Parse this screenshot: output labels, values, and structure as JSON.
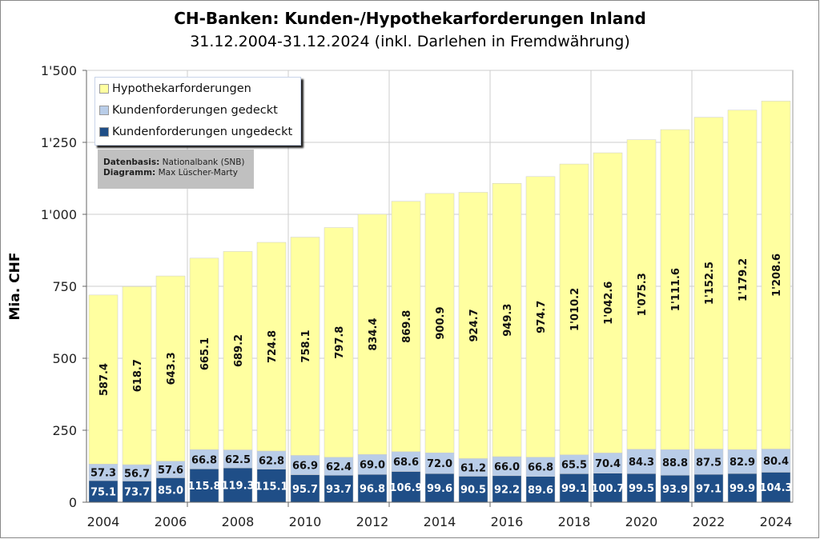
{
  "chart_data": {
    "type": "bar",
    "stacked": true,
    "title": "CH-Banken: Kunden-/Hypothekarforderungen  Inland",
    "subtitle": "31.12.2004-31.12.2024  (inkl. Darlehen in Fremdwährung)",
    "ylabel": "Mia. CHF",
    "xlabel": "",
    "ylim": [
      0,
      1500
    ],
    "yticks": [
      0,
      250,
      500,
      750,
      1000,
      1250,
      1500
    ],
    "ytick_labels": [
      "0",
      "250",
      "500",
      "750",
      "1'000",
      "1'250",
      "1'500"
    ],
    "categories": [
      "2004",
      "2005",
      "2006",
      "2007",
      "2008",
      "2009",
      "2010",
      "2011",
      "2012",
      "2013",
      "2014",
      "2015",
      "2016",
      "2017",
      "2018",
      "2019",
      "2020",
      "2021",
      "2022",
      "2023",
      "2024"
    ],
    "xtick_labels": [
      "2004",
      "2006",
      "2008",
      "2010",
      "2012",
      "2014",
      "2016",
      "2018",
      "2020",
      "2022",
      "2024"
    ],
    "series": [
      {
        "name": "Kundenforderungen ungedeckt",
        "color": "#1f4e87",
        "values": [
          75.1,
          73.7,
          85.0,
          115.8,
          119.3,
          115.1,
          95.7,
          93.7,
          96.8,
          106.9,
          99.6,
          90.5,
          92.2,
          89.6,
          99.1,
          100.7,
          99.5,
          93.9,
          97.1,
          99.9,
          104.3
        ],
        "labels": [
          "75.1",
          "73.7",
          "85.0",
          "115.8",
          "119.3",
          "115.1",
          "95.7",
          "93.7",
          "96.8",
          "106.9",
          "99.6",
          "90.5",
          "92.2",
          "89.6",
          "99.1",
          "100.7",
          "99.5",
          "93.9",
          "97.1",
          "99.9",
          "104.3"
        ]
      },
      {
        "name": "Kundenforderungen gedeckt",
        "color": "#b9cde8",
        "values": [
          57.3,
          56.7,
          57.6,
          66.8,
          62.5,
          62.8,
          66.9,
          62.4,
          69.0,
          68.6,
          72.0,
          61.2,
          66.0,
          66.8,
          65.5,
          70.4,
          84.3,
          88.8,
          87.5,
          82.9,
          80.4
        ],
        "labels": [
          "57.3",
          "56.7",
          "57.6",
          "66.8",
          "62.5",
          "62.8",
          "66.9",
          "62.4",
          "69.0",
          "68.6",
          "72.0",
          "61.2",
          "66.0",
          "66.8",
          "65.5",
          "70.4",
          "84.3",
          "88.8",
          "87.5",
          "82.9",
          "80.4"
        ]
      },
      {
        "name": "Hypothekarforderungen",
        "color": "#ffffa0",
        "values": [
          587.4,
          618.7,
          643.3,
          665.1,
          689.2,
          724.8,
          758.1,
          797.8,
          834.4,
          869.8,
          900.9,
          924.7,
          949.3,
          974.7,
          1010.2,
          1042.6,
          1075.3,
          1111.6,
          1152.5,
          1179.2,
          1208.6
        ],
        "labels": [
          "587.4",
          "618.7",
          "643.3",
          "665.1",
          "689.2",
          "724.8",
          "758.1",
          "797.8",
          "834.4",
          "869.8",
          "900.9",
          "924.7",
          "949.3",
          "974.7",
          "1'010.2",
          "1'042.6",
          "1'075.3",
          "1'111.6",
          "1'152.5",
          "1'179.2",
          "1'208.6"
        ]
      }
    ],
    "legend": {
      "placement": "top-left",
      "entries": [
        "Hypothekarforderungen",
        "Kundenforderungen gedeckt",
        "Kundenforderungen ungedeckt"
      ]
    },
    "source": {
      "label1": "Datenbasis:",
      "value1": "Nationalbank (SNB)",
      "label2": "Diagramm:",
      "value2": "Max Lüscher-Marty"
    },
    "grid": true
  }
}
